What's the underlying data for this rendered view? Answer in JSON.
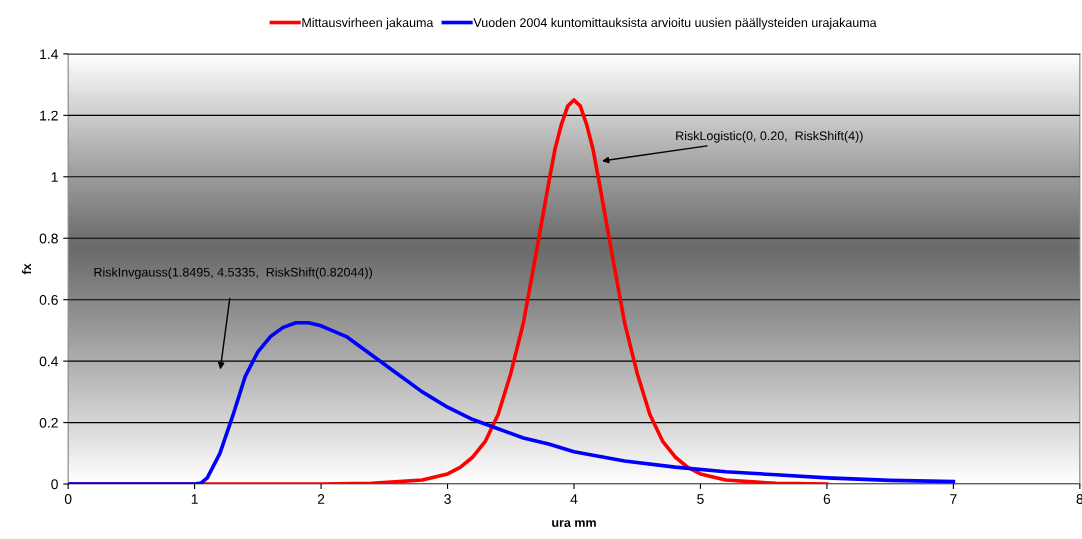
{
  "chart_data": {
    "type": "line",
    "xlabel": "ura mm",
    "ylabel": "fx",
    "xlim": [
      0,
      8
    ],
    "ylim": [
      0,
      1.4
    ],
    "xticks": [
      0,
      1,
      2,
      3,
      4,
      5,
      6,
      7,
      8
    ],
    "yticks": [
      0,
      0.2,
      0.4,
      0.6,
      0.8,
      1,
      1.2,
      1.4
    ],
    "grid": "y",
    "legend": "top",
    "marker": "none",
    "line_style": "solid",
    "series": [
      {
        "name": "Mittausvirheen jakauma",
        "color": "#ff0000",
        "x": [
          0,
          1,
          2,
          2.4,
          2.8,
          3,
          3.1,
          3.2,
          3.3,
          3.4,
          3.5,
          3.6,
          3.7,
          3.8,
          3.85,
          3.9,
          3.95,
          4,
          4.05,
          4.1,
          4.15,
          4.2,
          4.3,
          4.4,
          4.5,
          4.6,
          4.7,
          4.8,
          4.9,
          5,
          5.2,
          5.6,
          6
        ],
        "values": [
          0,
          0,
          0,
          0.002,
          0.013,
          0.033,
          0.054,
          0.088,
          0.14,
          0.226,
          0.36,
          0.525,
          0.75,
          0.98,
          1.09,
          1.17,
          1.23,
          1.25,
          1.23,
          1.17,
          1.09,
          0.98,
          0.75,
          0.525,
          0.36,
          0.226,
          0.14,
          0.088,
          0.054,
          0.033,
          0.013,
          0.002,
          0
        ]
      },
      {
        "name": "Vuoden 2004 kuntomittauksista arvioitu uusien päällysteiden urajakauma",
        "color": "#0000ff",
        "x": [
          0,
          1,
          1.05,
          1.1,
          1.2,
          1.3,
          1.4,
          1.5,
          1.6,
          1.7,
          1.8,
          1.9,
          2,
          2.2,
          2.4,
          2.6,
          2.8,
          3,
          3.2,
          3.4,
          3.6,
          3.8,
          4,
          4.4,
          4.8,
          5.2,
          5.6,
          6,
          6.5,
          7
        ],
        "values": [
          0,
          0,
          0.003,
          0.02,
          0.1,
          0.22,
          0.35,
          0.43,
          0.48,
          0.51,
          0.525,
          0.525,
          0.515,
          0.48,
          0.42,
          0.36,
          0.3,
          0.25,
          0.21,
          0.18,
          0.15,
          0.13,
          0.105,
          0.075,
          0.055,
          0.04,
          0.03,
          0.02,
          0.012,
          0.008
        ]
      }
    ],
    "annotations": [
      {
        "text": "RiskLogistic(0, 0.20,  RiskShift(4))",
        "x": 4.2,
        "y": 1.05
      },
      "RiskInvgauss(1.8495, 4.5335,  RiskShift(0.82044))"
    ]
  }
}
